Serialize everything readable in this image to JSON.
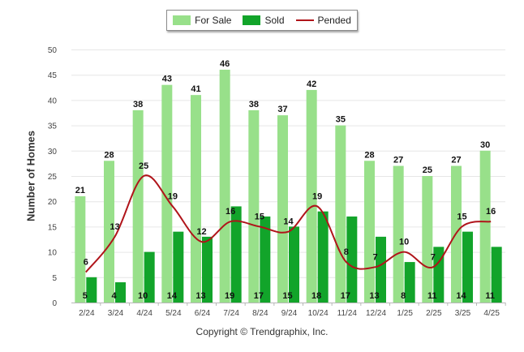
{
  "chart_data": {
    "type": "bar",
    "title": "",
    "xlabel": "",
    "ylabel": "Number of Homes",
    "ylim": [
      0,
      50
    ],
    "yticks": [
      0,
      5,
      10,
      15,
      20,
      25,
      30,
      35,
      40,
      45,
      50
    ],
    "grid": true,
    "legend_position": "top-center",
    "categories": [
      "2/24",
      "3/24",
      "4/24",
      "5/24",
      "6/24",
      "7/24",
      "8/24",
      "9/24",
      "10/24",
      "11/24",
      "12/24",
      "1/25",
      "2/25",
      "3/25",
      "4/25"
    ],
    "series": [
      {
        "name": "For Sale",
        "type": "bar",
        "color": "#98e08a",
        "values": [
          21,
          28,
          38,
          43,
          41,
          46,
          38,
          37,
          42,
          35,
          28,
          27,
          25,
          27,
          30
        ]
      },
      {
        "name": "Sold",
        "type": "bar",
        "color": "#12a42a",
        "values": [
          5,
          4,
          10,
          14,
          13,
          19,
          17,
          15,
          18,
          17,
          13,
          8,
          11,
          14,
          11
        ]
      },
      {
        "name": "Pended",
        "type": "line",
        "color": "#b0141a",
        "values": [
          6,
          13,
          25,
          19,
          12,
          16,
          15,
          14,
          19,
          8,
          7,
          10,
          7,
          15,
          16
        ]
      }
    ]
  },
  "footer": {
    "copyright": "Copyright © Trendgraphix, Inc."
  }
}
